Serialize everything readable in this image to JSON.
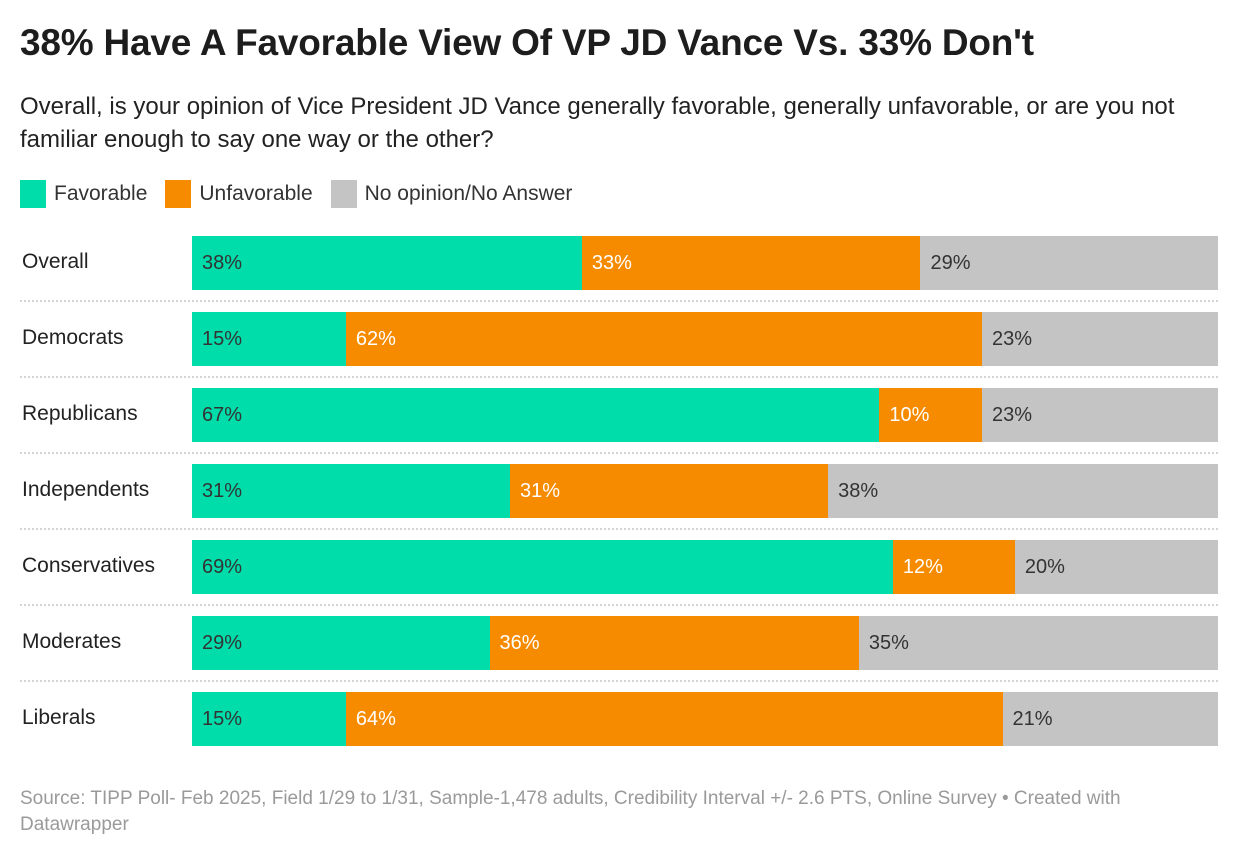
{
  "chart_data": {
    "type": "bar",
    "stacked": true,
    "orientation": "horizontal",
    "title": "38% Have A Favorable View Of VP JD Vance Vs. 33% Don't",
    "subtitle": "Overall, is your opinion of Vice President JD Vance generally favorable, generally unfavorable, or are you not familiar enough to say one way or the other?",
    "legend_position": "top-left",
    "categories": [
      "Overall",
      "Democrats",
      "Republicans",
      "Independents",
      "Conservatives",
      "Moderates",
      "Liberals"
    ],
    "series": [
      {
        "name": "Favorable",
        "color": "#01dcab",
        "label_color": "#333333",
        "values": [
          38,
          15,
          67,
          31,
          69,
          29,
          15
        ]
      },
      {
        "name": "Unfavorable",
        "color": "#f78b00",
        "label_color": "#ffffff",
        "values": [
          33,
          62,
          10,
          31,
          12,
          36,
          64
        ]
      },
      {
        "name": "No opinion/No Answer",
        "color": "#c4c4c4",
        "label_color": "#333333",
        "values": [
          29,
          23,
          23,
          38,
          20,
          35,
          21
        ]
      }
    ],
    "value_suffix": "%"
  },
  "footer": "Source: TIPP Poll- Feb 2025, Field 1/29 to 1/31, Sample-1,478 adults, Credibility Interval +/- 2.6 PTS, Online Survey • Created with Datawrapper"
}
